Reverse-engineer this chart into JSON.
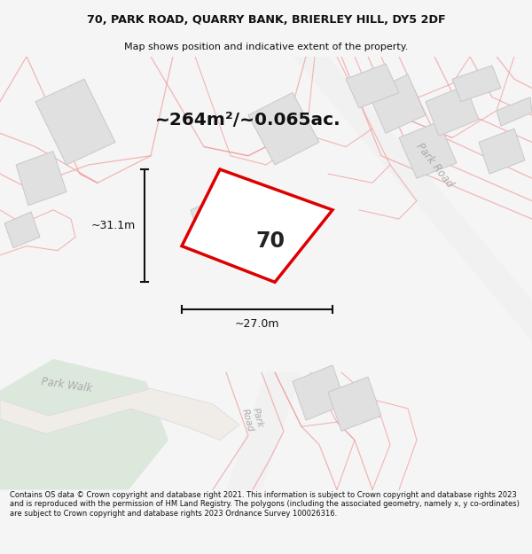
{
  "title_line1": "70, PARK ROAD, QUARRY BANK, BRIERLEY HILL, DY5 2DF",
  "title_line2": "Map shows position and indicative extent of the property.",
  "area_text": "~264m²/~0.065ac.",
  "dim_width": "~27.0m",
  "dim_height": "~31.1m",
  "label_70": "70",
  "footer_text": "Contains OS data © Crown copyright and database right 2021. This information is subject to Crown copyright and database rights 2023 and is reproduced with the permission of HM Land Registry. The polygons (including the associated geometry, namely x, y co-ordinates) are subject to Crown copyright and database rights 2023 Ordnance Survey 100026316.",
  "bg_color": "#f5f5f5",
  "map_bg": "#ffffff",
  "build_fill": "#e0e0e0",
  "build_edge": "#c8c8c8",
  "pink": "#f0a0a0",
  "pink_fill": "#fce8e8",
  "green_fill": "#ddeedd",
  "road_gray": "#d0d0d0",
  "property_red": "#dd0000",
  "dim_color": "#111111",
  "label_color": "#aaaaaa",
  "text_color": "#111111"
}
